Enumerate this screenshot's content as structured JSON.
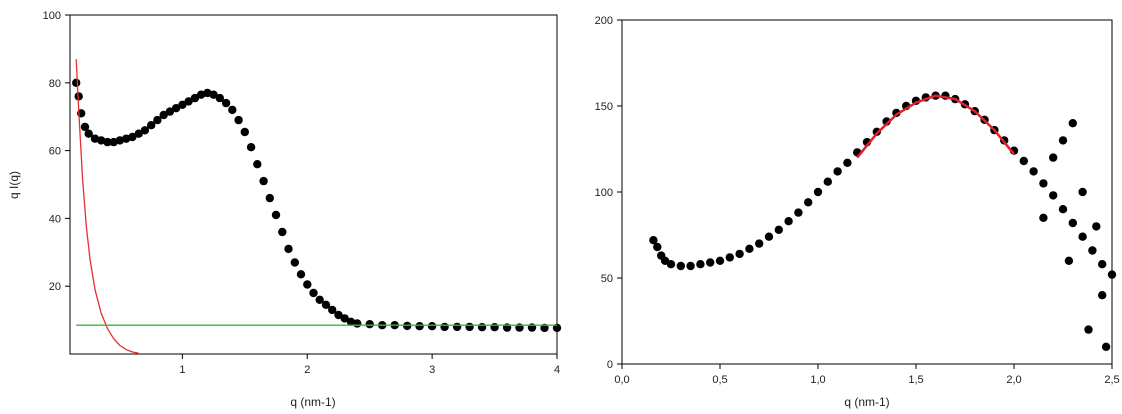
{
  "chart_data": [
    {
      "type": "scatter",
      "title": "",
      "xlabel": "q (nm-1)",
      "ylabel": "q I(q)",
      "xlim": [
        0.1,
        4
      ],
      "ylim": [
        0,
        100
      ],
      "xticks": [
        1,
        2,
        3,
        4
      ],
      "yticks": [
        20,
        40,
        60,
        80,
        100
      ],
      "grid": false,
      "legend": "none",
      "series": [
        {
          "kind": "scatter",
          "color": "#000000",
          "points": [
            [
              0.15,
              80
            ],
            [
              0.17,
              76
            ],
            [
              0.19,
              71
            ],
            [
              0.22,
              67
            ],
            [
              0.25,
              65
            ],
            [
              0.3,
              63.5
            ],
            [
              0.35,
              63
            ],
            [
              0.4,
              62.5
            ],
            [
              0.45,
              62.5
            ],
            [
              0.5,
              63
            ],
            [
              0.55,
              63.5
            ],
            [
              0.6,
              64
            ],
            [
              0.65,
              65
            ],
            [
              0.7,
              66
            ],
            [
              0.75,
              67.5
            ],
            [
              0.8,
              69
            ],
            [
              0.85,
              70.5
            ],
            [
              0.9,
              71.5
            ],
            [
              0.95,
              72.5
            ],
            [
              1.0,
              73.5
            ],
            [
              1.05,
              74.5
            ],
            [
              1.1,
              75.5
            ],
            [
              1.15,
              76.5
            ],
            [
              1.2,
              77
            ],
            [
              1.25,
              76.5
            ],
            [
              1.3,
              75.5
            ],
            [
              1.35,
              74
            ],
            [
              1.4,
              72
            ],
            [
              1.45,
              69
            ],
            [
              1.5,
              65.5
            ],
            [
              1.55,
              61
            ],
            [
              1.6,
              56
            ],
            [
              1.65,
              51
            ],
            [
              1.7,
              46
            ],
            [
              1.75,
              41
            ],
            [
              1.8,
              36
            ],
            [
              1.85,
              31
            ],
            [
              1.9,
              27
            ],
            [
              1.95,
              23.5
            ],
            [
              2.0,
              20.5
            ],
            [
              2.05,
              18
            ],
            [
              2.1,
              16
            ],
            [
              2.15,
              14.5
            ],
            [
              2.2,
              13
            ],
            [
              2.25,
              11.5
            ],
            [
              2.3,
              10.5
            ],
            [
              2.35,
              9.5
            ],
            [
              2.4,
              9
            ],
            [
              2.5,
              8.8
            ],
            [
              2.6,
              8.5
            ],
            [
              2.7,
              8.5
            ],
            [
              2.8,
              8.3
            ],
            [
              2.9,
              8.2
            ],
            [
              3.0,
              8.2
            ],
            [
              3.1,
              8
            ],
            [
              3.2,
              8
            ],
            [
              3.3,
              8
            ],
            [
              3.4,
              7.9
            ],
            [
              3.5,
              7.9
            ],
            [
              3.6,
              7.8
            ],
            [
              3.7,
              7.8
            ],
            [
              3.8,
              7.8
            ],
            [
              3.9,
              7.7
            ],
            [
              4.0,
              7.7
            ]
          ]
        },
        {
          "kind": "line",
          "color": "#e53030",
          "points": [
            [
              0.15,
              87
            ],
            [
              0.17,
              72
            ],
            [
              0.2,
              52
            ],
            [
              0.23,
              38
            ],
            [
              0.26,
              28
            ],
            [
              0.3,
              19
            ],
            [
              0.35,
              12
            ],
            [
              0.4,
              7.5
            ],
            [
              0.45,
              4.5
            ],
            [
              0.5,
              2.5
            ],
            [
              0.55,
              1.3
            ],
            [
              0.6,
              0.6
            ],
            [
              0.65,
              0.2
            ]
          ]
        },
        {
          "kind": "line",
          "color": "#3cb43c",
          "points": [
            [
              0.15,
              8.5
            ],
            [
              4.0,
              8.5
            ]
          ]
        }
      ]
    },
    {
      "type": "scatter",
      "title": "",
      "xlabel": "q (nm-1)",
      "ylabel": "",
      "xlim": [
        0,
        2.5
      ],
      "ylim": [
        0,
        200
      ],
      "xticks": [
        "0,0",
        "0,5",
        "1,0",
        "1,5",
        "2,0",
        "2,5"
      ],
      "yticks": [
        0,
        50,
        100,
        150,
        200
      ],
      "grid": false,
      "legend": "none",
      "series": [
        {
          "kind": "scatter",
          "color": "#000000",
          "points": [
            [
              0.16,
              72
            ],
            [
              0.18,
              68
            ],
            [
              0.2,
              63
            ],
            [
              0.22,
              60
            ],
            [
              0.25,
              58
            ],
            [
              0.3,
              57
            ],
            [
              0.35,
              57
            ],
            [
              0.4,
              58
            ],
            [
              0.45,
              59
            ],
            [
              0.5,
              60
            ],
            [
              0.55,
              62
            ],
            [
              0.6,
              64
            ],
            [
              0.65,
              67
            ],
            [
              0.7,
              70
            ],
            [
              0.75,
              74
            ],
            [
              0.8,
              78
            ],
            [
              0.85,
              83
            ],
            [
              0.9,
              88
            ],
            [
              0.95,
              94
            ],
            [
              1.0,
              100
            ],
            [
              1.05,
              106
            ],
            [
              1.1,
              112
            ],
            [
              1.15,
              117
            ],
            [
              1.2,
              123
            ],
            [
              1.25,
              129
            ],
            [
              1.3,
              135
            ],
            [
              1.35,
              141
            ],
            [
              1.4,
              146
            ],
            [
              1.45,
              150
            ],
            [
              1.5,
              153
            ],
            [
              1.55,
              155
            ],
            [
              1.6,
              156
            ],
            [
              1.65,
              156
            ],
            [
              1.7,
              154
            ],
            [
              1.75,
              151
            ],
            [
              1.8,
              147
            ],
            [
              1.85,
              142
            ],
            [
              1.9,
              136
            ],
            [
              1.95,
              130
            ],
            [
              2.0,
              124
            ],
            [
              2.05,
              118
            ],
            [
              2.1,
              112
            ],
            [
              2.15,
              105
            ],
            [
              2.2,
              98
            ],
            [
              2.25,
              90
            ],
            [
              2.3,
              82
            ],
            [
              2.35,
              74
            ],
            [
              2.4,
              66
            ],
            [
              2.45,
              58
            ],
            [
              2.5,
              52
            ],
            [
              2.3,
              140
            ],
            [
              2.2,
              120
            ],
            [
              2.35,
              100
            ],
            [
              2.42,
              80
            ],
            [
              2.28,
              60
            ],
            [
              2.45,
              40
            ],
            [
              2.38,
              20
            ],
            [
              2.47,
              10
            ],
            [
              2.15,
              85
            ],
            [
              2.25,
              130
            ]
          ]
        },
        {
          "kind": "line",
          "color": "#e0202a",
          "points": [
            [
              1.2,
              120
            ],
            [
              1.3,
              134
            ],
            [
              1.4,
              145
            ],
            [
              1.5,
              152
            ],
            [
              1.6,
              156
            ],
            [
              1.7,
              154
            ],
            [
              1.8,
              147
            ],
            [
              1.9,
              136
            ],
            [
              2.0,
              122
            ]
          ]
        }
      ]
    }
  ]
}
